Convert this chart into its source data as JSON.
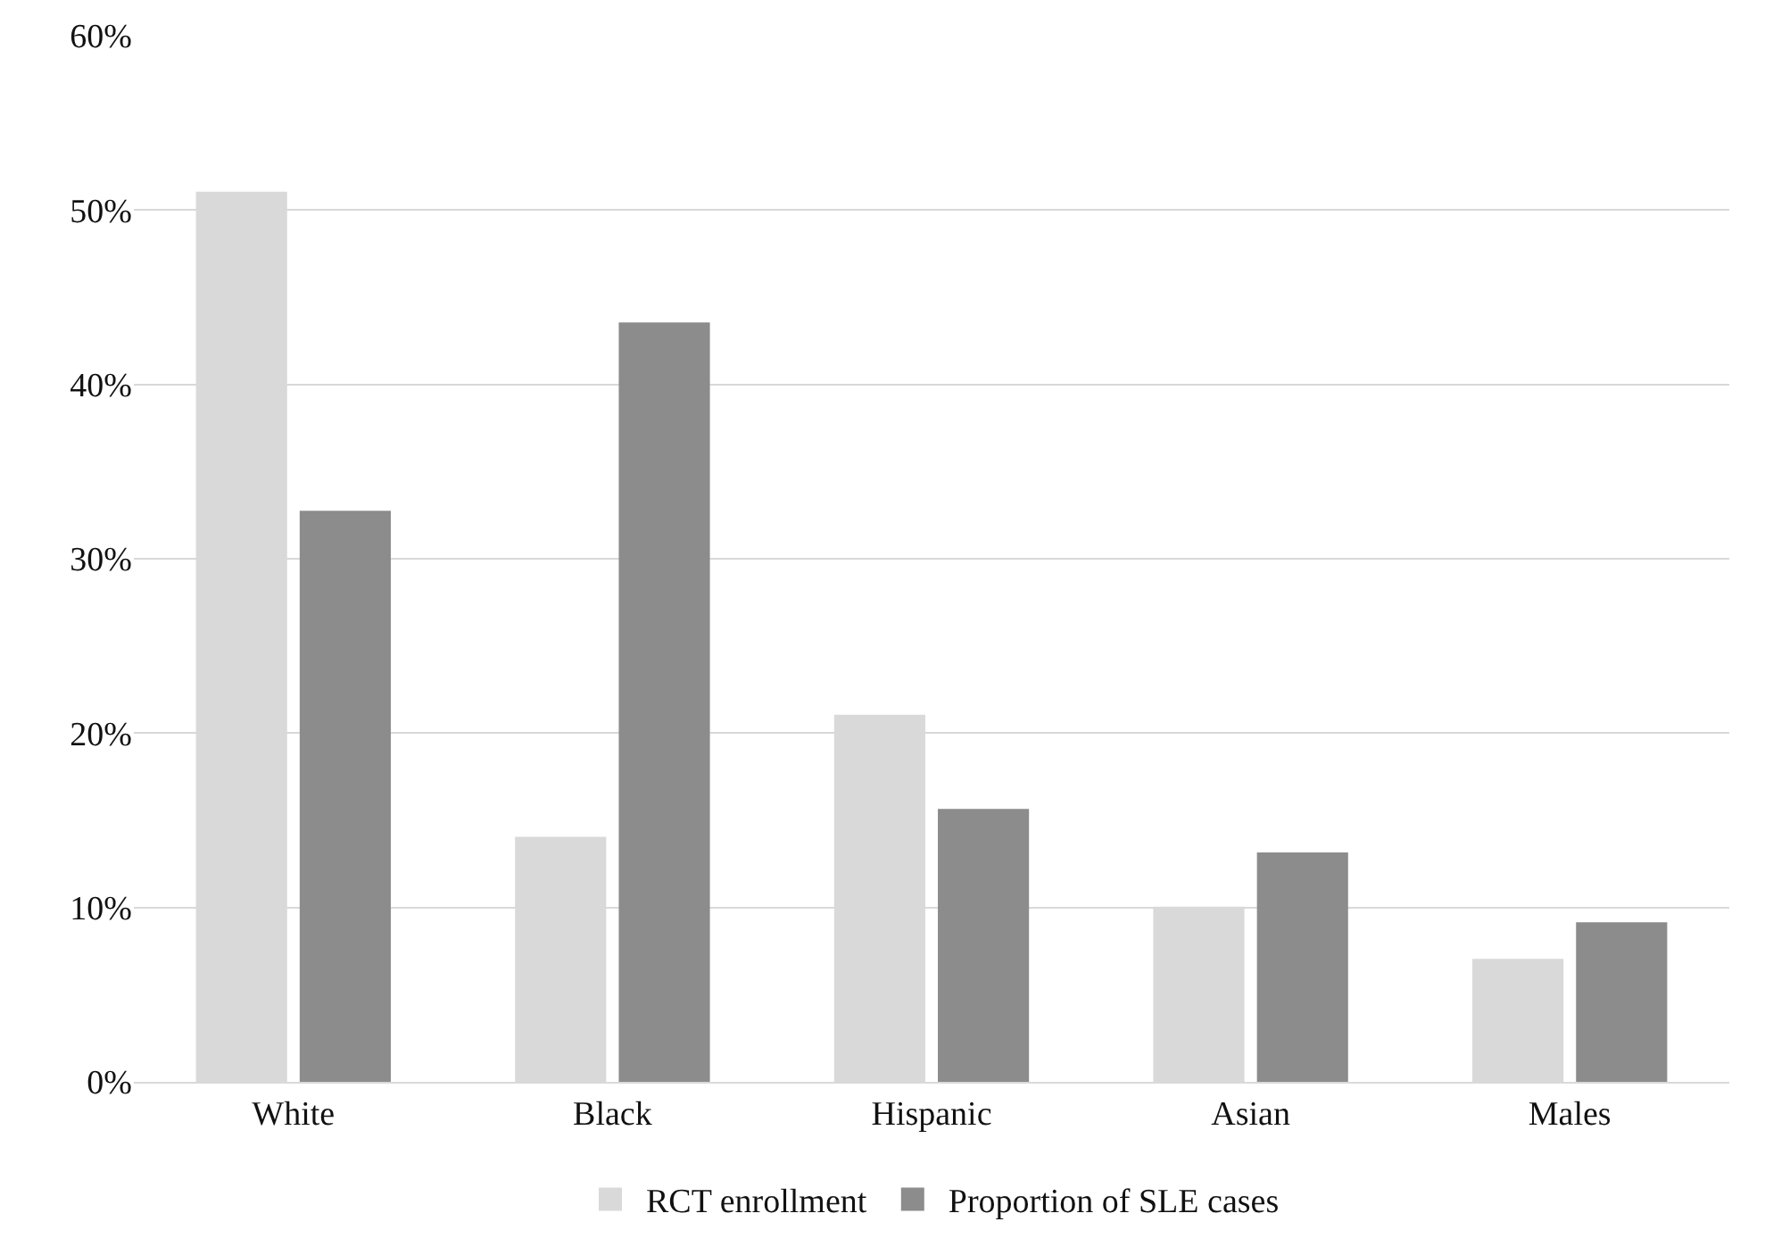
{
  "chart_data": {
    "type": "bar",
    "categories": [
      "White",
      "Black",
      "Hispanic",
      "Asian",
      "Males"
    ],
    "series": [
      {
        "name": "RCT enrollment",
        "color": "#d9d9d9",
        "values": [
          51,
          14,
          21,
          10,
          7
        ]
      },
      {
        "name": "Proportion of SLE cases",
        "color": "#8c8c8c",
        "values": [
          32.7,
          43.5,
          15.6,
          13.1,
          9.1
        ]
      }
    ],
    "ylim": [
      0,
      60
    ],
    "yticks": [
      {
        "value": 0,
        "label": "0%"
      },
      {
        "value": 10,
        "label": "10%"
      },
      {
        "value": 20,
        "label": "20%"
      },
      {
        "value": 30,
        "label": "30%"
      },
      {
        "value": 40,
        "label": "40%"
      },
      {
        "value": 50,
        "label": "50%"
      },
      {
        "value": 60,
        "label": "60%"
      }
    ],
    "grid": "y",
    "legend": "bottom"
  }
}
